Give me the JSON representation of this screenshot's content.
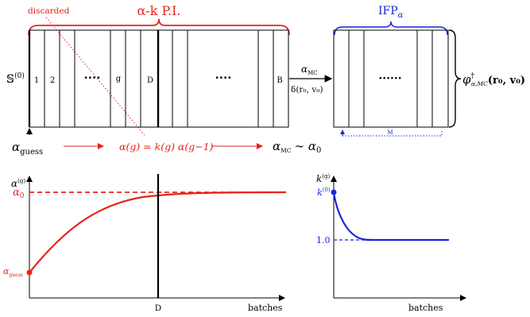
{
  "colors": {
    "red": "#e8231a",
    "blue": "#1a25e0",
    "black": "#000000"
  },
  "top_left": {
    "brace_title": "α-k P.I.",
    "discarded": "discarded",
    "s0": "𝕊",
    "s0_sup": "(0)",
    "cells": [
      "1",
      "2",
      "····",
      "g",
      "D",
      "····",
      "B"
    ],
    "alpha_guess": "α",
    "alpha_guess_sub": "guess",
    "update_rule": "α(g) = k(g) α(g−1)",
    "alpha_mc": "α",
    "alpha_mc_sub": "MC",
    "approx": "∼ α",
    "approx_sub": "0"
  },
  "transfer": {
    "arrow_top": "α",
    "arrow_top_sub": "MC",
    "arrow_bottom": "δ(r₀, v₀)"
  },
  "top_right": {
    "brace_title": "IFP",
    "brace_title_sub": "α",
    "dots": "······",
    "m_label": "M",
    "phi": "φ",
    "phi_sup": "†",
    "phi_sub": "α,MC",
    "phi_args": "(r₀, v₀)"
  },
  "left_plot": {
    "y_label": "α",
    "y_label_sup": "(g)",
    "y_tick_alpha0": "α",
    "y_tick_alpha0_sub": "0",
    "y_tick_guess": "α",
    "y_tick_guess_sub": "guess",
    "x_tick_d": "D",
    "x_label": "batches"
  },
  "right_plot": {
    "y_label": "k",
    "y_label_sup": "(g)",
    "y_tick_k0": "k",
    "y_tick_k0_sup": "(0)",
    "y_tick_one": "1.0",
    "x_label": "batches"
  }
}
